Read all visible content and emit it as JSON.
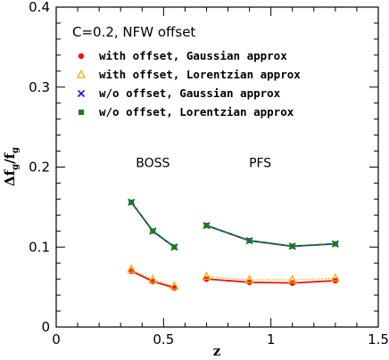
{
  "chart_data": {
    "type": "line",
    "xlabel": "z",
    "ylabel_main": "Δf",
    "ylabel_sub1": "g",
    "ylabel_slash": "/f",
    "ylabel_sub2": "g",
    "xlim": [
      0,
      1.5
    ],
    "ylim": [
      0,
      0.4
    ],
    "xticks": [
      "0",
      "0.5",
      "1",
      "1.5"
    ],
    "yticks": [
      "0",
      "0.1",
      "0.2",
      "0.3",
      "0.4"
    ],
    "grid": false,
    "legend_title": "C=0.2, NFW offset",
    "legend_position": "top-left",
    "annotations": [
      {
        "text": "BOSS",
        "x": 0.45,
        "y": 0.2
      },
      {
        "text": "PFS",
        "x": 0.95,
        "y": 0.2
      }
    ],
    "series": [
      {
        "name": "with offset, Gaussian approx",
        "color": "#ee1111",
        "marker": "circle",
        "line_style": "solid",
        "groups": [
          {
            "x": [
              0.35,
              0.45,
              0.55
            ],
            "y": [
              0.07,
              0.057,
              0.049
            ]
          },
          {
            "x": [
              0.7,
              0.9,
              1.1,
              1.3
            ],
            "y": [
              0.06,
              0.056,
              0.055,
              0.058
            ]
          }
        ]
      },
      {
        "name": "with offset, Lorentzian approx",
        "color": "#ffa500",
        "marker": "triangle",
        "line_style": "dotted",
        "groups": [
          {
            "x": [
              0.35,
              0.45,
              0.55
            ],
            "y": [
              0.072,
              0.059,
              0.051
            ]
          },
          {
            "x": [
              0.7,
              0.9,
              1.1,
              1.3
            ],
            "y": [
              0.063,
              0.059,
              0.059,
              0.061
            ]
          }
        ]
      },
      {
        "name": "w/o offset, Gaussian approx",
        "color": "#1a1acc",
        "marker": "x",
        "line_style": "solid",
        "groups": [
          {
            "x": [
              0.35,
              0.45,
              0.55
            ],
            "y": [
              0.156,
              0.12,
              0.1
            ]
          },
          {
            "x": [
              0.7,
              0.9,
              1.1,
              1.3
            ],
            "y": [
              0.127,
              0.108,
              0.101,
              0.104
            ]
          }
        ]
      },
      {
        "name": "w/o offset, Lorentzian approx",
        "color": "#1a7a1a",
        "marker": "square",
        "line_style": "dashed",
        "groups": [
          {
            "x": [
              0.35,
              0.45,
              0.55
            ],
            "y": [
              0.156,
              0.12,
              0.1
            ]
          },
          {
            "x": [
              0.7,
              0.9,
              1.1,
              1.3
            ],
            "y": [
              0.127,
              0.108,
              0.101,
              0.104
            ]
          }
        ]
      }
    ]
  }
}
